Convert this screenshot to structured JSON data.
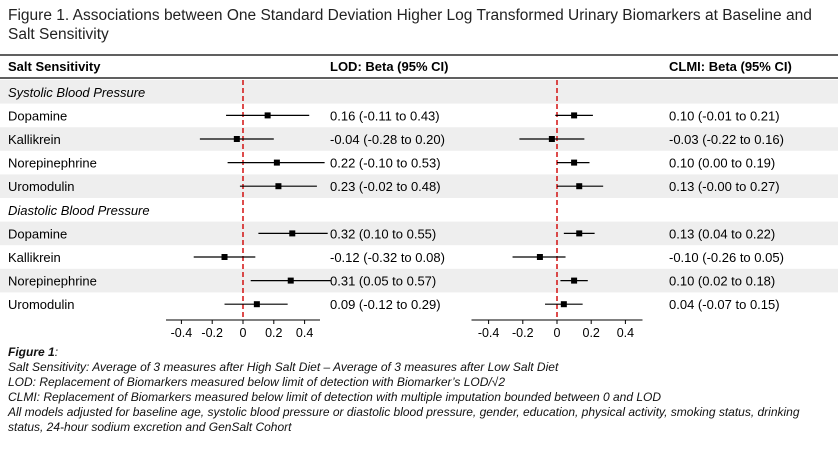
{
  "title": "Figure 1. Associations between One Standard Deviation Higher Log Transformed Urinary Biomarkers at Baseline and Salt Sensitivity",
  "colors": {
    "band": "#eeeeee",
    "ref_line": "#d00000",
    "ink": "#000000"
  },
  "chart_data": {
    "type": "forest",
    "header": {
      "outcome": "Salt Sensitivity",
      "lod": "LOD: Beta (95% CI)",
      "clmi": "CLMI: Beta (95% CI)"
    },
    "xlim": [
      -0.5,
      0.5
    ],
    "xticks": [
      -0.4,
      -0.2,
      0,
      0.2,
      0.4
    ],
    "xtick_labels": [
      "-0.4",
      "-0.2",
      "0",
      "0.2",
      "0.4"
    ],
    "reference_line": 0,
    "groups": [
      {
        "label": "Systolic Blood Pressure",
        "rows": [
          {
            "biomarker": "Dopamine",
            "lod": {
              "est": 0.16,
              "lo": -0.11,
              "hi": 0.43,
              "text": "0.16 (-0.11 to 0.43)"
            },
            "clmi": {
              "est": 0.1,
              "lo": -0.01,
              "hi": 0.21,
              "text": "0.10 (-0.01 to 0.21)"
            }
          },
          {
            "biomarker": "Kallikrein",
            "lod": {
              "est": -0.04,
              "lo": -0.28,
              "hi": 0.2,
              "text": "-0.04 (-0.28 to 0.20)"
            },
            "clmi": {
              "est": -0.03,
              "lo": -0.22,
              "hi": 0.16,
              "text": "-0.03 (-0.22 to 0.16)"
            }
          },
          {
            "biomarker": "Norepinephrine",
            "lod": {
              "est": 0.22,
              "lo": -0.1,
              "hi": 0.53,
              "text": "0.22 (-0.10 to 0.53)"
            },
            "clmi": {
              "est": 0.1,
              "lo": 0.0,
              "hi": 0.19,
              "text": "0.10 (0.00 to 0.19)"
            }
          },
          {
            "biomarker": "Uromodulin",
            "lod": {
              "est": 0.23,
              "lo": -0.02,
              "hi": 0.48,
              "text": "0.23 (-0.02 to 0.48)"
            },
            "clmi": {
              "est": 0.13,
              "lo": -0.0,
              "hi": 0.27,
              "text": "0.13 (-0.00 to 0.27)"
            }
          }
        ]
      },
      {
        "label": "Diastolic Blood Pressure",
        "rows": [
          {
            "biomarker": "Dopamine",
            "lod": {
              "est": 0.32,
              "lo": 0.1,
              "hi": 0.55,
              "text": "0.32 (0.10 to 0.55)"
            },
            "clmi": {
              "est": 0.13,
              "lo": 0.04,
              "hi": 0.22,
              "text": "0.13 (0.04 to 0.22)"
            }
          },
          {
            "biomarker": "Kallikrein",
            "lod": {
              "est": -0.12,
              "lo": -0.32,
              "hi": 0.08,
              "text": "-0.12 (-0.32 to 0.08)"
            },
            "clmi": {
              "est": -0.1,
              "lo": -0.26,
              "hi": 0.05,
              "text": "-0.10 (-0.26 to 0.05)"
            }
          },
          {
            "biomarker": "Norepinephrine",
            "lod": {
              "est": 0.31,
              "lo": 0.05,
              "hi": 0.57,
              "text": "0.31 (0.05 to 0.57)"
            },
            "clmi": {
              "est": 0.1,
              "lo": 0.02,
              "hi": 0.18,
              "text": "0.10 (0.02 to 0.18)"
            }
          },
          {
            "biomarker": "Uromodulin",
            "lod": {
              "est": 0.09,
              "lo": -0.12,
              "hi": 0.29,
              "text": "0.09 (-0.12 to 0.29)"
            },
            "clmi": {
              "est": 0.04,
              "lo": -0.07,
              "hi": 0.15,
              "text": "0.04 (-0.07 to 0.15)"
            }
          }
        ]
      }
    ]
  },
  "notes": {
    "lead": "Figure 1",
    "lead_suffix": ":",
    "lines": [
      "Salt Sensitivity: Average of 3 measures after High Salt Diet – Average of 3 measures after Low Salt Diet",
      "LOD: Replacement of Biomarkers measured below limit of detection with Biomarker’s LOD/√2",
      "CLMI: Replacement of Biomarkers measured below limit of detection with multiple imputation bounded between 0 and LOD",
      "All models adjusted for baseline age, systolic blood pressure or diastolic blood pressure, gender, education, physical activity, smoking status, drinking status, 24-hour sodium excretion and GenSalt Cohort"
    ]
  }
}
